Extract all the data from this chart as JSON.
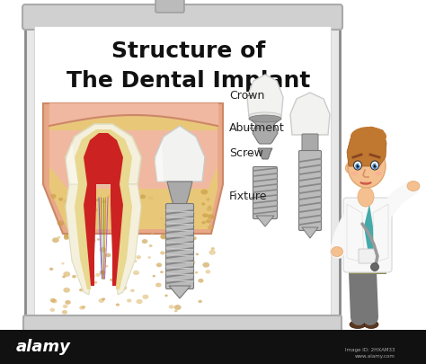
{
  "title_line1": "Structure of",
  "title_line2": "The Dental Implant",
  "labels": [
    "Crown",
    "Abutment",
    "Screw",
    "Fixture"
  ],
  "bg_color": "#ffffff",
  "board_bg": "#f0f0f0",
  "board_inner": "#ffffff",
  "gum_pink": "#f0b8a0",
  "gum_outer": "#e8a888",
  "bone_color": "#e8c878",
  "bone_dark": "#d4aa55",
  "tooth_cream": "#f5f0dc",
  "tooth_white": "#f8f8f8",
  "pulp_red": "#cc2222",
  "implant_silver": "#bbbbbb",
  "implant_dark": "#888888",
  "implant_mid": "#999999",
  "label_color": "#222222",
  "title_color": "#111111",
  "watermark_bg": "#111111",
  "watermark_fg": "#ffffff",
  "title_fontsize": 18,
  "label_fontsize": 9
}
